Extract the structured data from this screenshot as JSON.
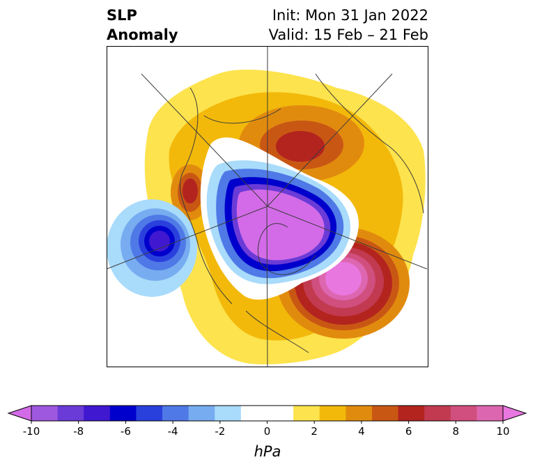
{
  "title": {
    "variable": "SLP",
    "kind": "Anomaly",
    "init": "Init: Mon 31 Jan 2022",
    "valid": "Valid: 15 Feb – 21 Feb"
  },
  "colorbar": {
    "unit": "hPa",
    "levels": [
      -10,
      -9,
      -8,
      -7,
      -6,
      -5,
      -4,
      -3,
      -2,
      -1,
      1,
      2,
      3,
      4,
      5,
      6,
      7,
      8,
      9,
      10
    ],
    "tick_labels": [
      "-10",
      "-8",
      "-6",
      "-4",
      "-2",
      "0",
      "2",
      "4",
      "6",
      "8",
      "10"
    ],
    "colors": [
      "#d36be8",
      "#9e58df",
      "#6a3bd7",
      "#3f18d0",
      "#0000cc",
      "#2a40dd",
      "#4f79e6",
      "#77adf0",
      "#a9dbfb",
      "#ffffff",
      "#ffffff",
      "#fde34d",
      "#f2b90b",
      "#e18b0e",
      "#c95714",
      "#b3241f",
      "#c13a50",
      "#d04f7e",
      "#dd66b0",
      "#e877df"
    ]
  },
  "map": {
    "projection": "north-polar-stereographic",
    "anomalies": [
      {
        "name": "arctic-low",
        "sign": "negative",
        "peak_hPa": -10
      },
      {
        "name": "north-pacific-low",
        "sign": "negative",
        "peak_hPa": -7
      },
      {
        "name": "north-atlantic-high",
        "sign": "positive",
        "peak_hPa": 10
      },
      {
        "name": "scandinavia-high",
        "sign": "positive",
        "peak_hPa": 6
      },
      {
        "name": "east-asia-high",
        "sign": "positive",
        "peak_hPa": 6
      }
    ]
  }
}
